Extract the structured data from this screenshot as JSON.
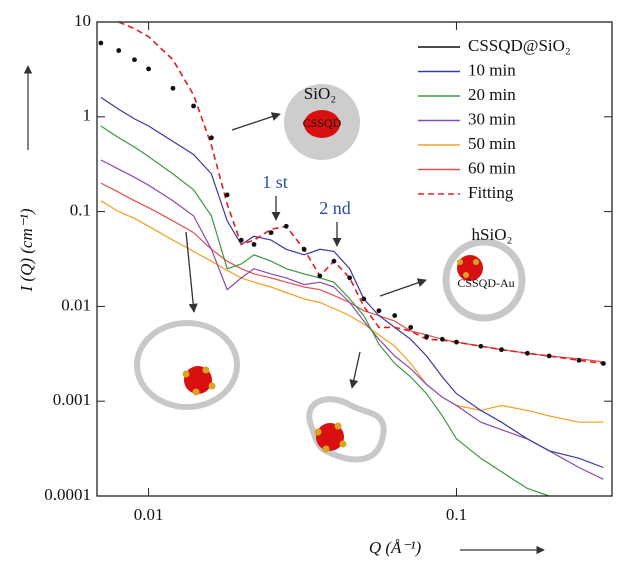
{
  "chart_data": {
    "type": "line",
    "x_label": "Q (Å⁻¹)",
    "y_label": "I (Q) (cm⁻¹)",
    "xscale": "log",
    "yscale": "log",
    "xlim": [
      0.0068,
      0.32
    ],
    "ylim": [
      0.0001,
      10
    ],
    "xticks": [
      0.01,
      0.1
    ],
    "yticks": [
      0.0001,
      0.001,
      0.01,
      0.1,
      1,
      10
    ],
    "legend": "upper right",
    "annotations": [
      "1 st",
      "2 nd",
      "SiO₂",
      "CSSQD",
      "hSiO₂",
      "CSSQD-Au"
    ],
    "x": [
      0.007,
      0.008,
      0.009,
      0.01,
      0.012,
      0.014,
      0.016,
      0.018,
      0.02,
      0.022,
      0.025,
      0.028,
      0.032,
      0.036,
      0.04,
      0.045,
      0.05,
      0.056,
      0.063,
      0.071,
      0.08,
      0.09,
      0.1,
      0.12,
      0.14,
      0.17,
      0.2,
      0.25,
      0.3
    ],
    "series": [
      {
        "name": "CSSQD@SiO₂",
        "color": "#111111",
        "style": "dots",
        "values": [
          6,
          5,
          4,
          3.2,
          2.0,
          1.3,
          0.6,
          0.15,
          0.05,
          0.045,
          0.06,
          0.07,
          0.04,
          0.021,
          0.03,
          0.02,
          0.012,
          0.009,
          0.008,
          0.006,
          0.0048,
          0.0045,
          0.0042,
          0.0038,
          0.0035,
          0.0032,
          0.003,
          0.0027,
          0.0025
        ]
      },
      {
        "name": "10 min",
        "color": "#3a3aa0",
        "style": "solid",
        "values": [
          1.6,
          1.2,
          0.95,
          0.8,
          0.55,
          0.4,
          0.25,
          0.08,
          0.045,
          0.055,
          0.05,
          0.04,
          0.035,
          0.04,
          0.038,
          0.025,
          0.012,
          0.008,
          0.006,
          0.0045,
          0.003,
          0.0018,
          0.0012,
          0.0008,
          0.0006,
          0.0004,
          0.0003,
          0.00025,
          0.0002
        ]
      },
      {
        "name": "20 min",
        "color": "#3a9a3a",
        "style": "solid",
        "values": [
          0.8,
          0.6,
          0.48,
          0.38,
          0.25,
          0.17,
          0.09,
          0.025,
          0.028,
          0.035,
          0.03,
          0.025,
          0.022,
          0.02,
          0.018,
          0.012,
          0.008,
          0.004,
          0.0025,
          0.0018,
          0.0012,
          0.0007,
          0.0004,
          0.00025,
          0.00018,
          0.00012,
          0.0001,
          null,
          null
        ]
      },
      {
        "name": "30 min",
        "color": "#8a4ab0",
        "style": "solid",
        "values": [
          0.35,
          0.28,
          0.23,
          0.19,
          0.13,
          0.09,
          0.04,
          0.015,
          0.02,
          0.025,
          0.022,
          0.02,
          0.017,
          0.018,
          0.016,
          0.011,
          0.007,
          0.0045,
          0.003,
          0.0022,
          0.0015,
          0.0011,
          0.0009,
          0.0006,
          0.0005,
          0.0004,
          0.0003,
          0.0002,
          0.00015
        ]
      },
      {
        "name": "50 min",
        "color": "#f0a020",
        "style": "solid",
        "values": [
          0.13,
          0.1,
          0.085,
          0.07,
          0.05,
          0.038,
          0.03,
          0.024,
          0.02,
          0.018,
          0.016,
          0.014,
          0.012,
          0.011,
          0.0095,
          0.008,
          0.0065,
          0.005,
          0.0038,
          0.0025,
          0.0015,
          0.0011,
          0.0009,
          0.0008,
          0.0009,
          0.0008,
          0.0007,
          0.0006,
          0.0006
        ]
      },
      {
        "name": "60 min",
        "color": "#e05050",
        "style": "solid",
        "values": [
          0.2,
          0.16,
          0.13,
          0.11,
          0.08,
          0.06,
          0.04,
          0.03,
          0.025,
          0.022,
          0.02,
          0.018,
          0.016,
          0.015,
          0.013,
          0.011,
          0.009,
          0.008,
          0.007,
          0.0055,
          0.005,
          0.0045,
          0.0042,
          0.0038,
          0.0035,
          0.0032,
          0.003,
          0.0028,
          0.0026
        ]
      },
      {
        "name": "Fitting",
        "color": "#e02020",
        "style": "dashed",
        "values": [
          null,
          10,
          8.5,
          7,
          4,
          1.7,
          0.5,
          0.12,
          0.045,
          0.05,
          0.065,
          0.07,
          0.04,
          0.021,
          0.03,
          0.02,
          0.01,
          0.006,
          0.006,
          0.0055,
          0.0045,
          0.0044,
          0.0042,
          0.0038,
          0.0035,
          0.0032,
          0.003,
          0.0027,
          0.0025
        ]
      }
    ]
  }
}
